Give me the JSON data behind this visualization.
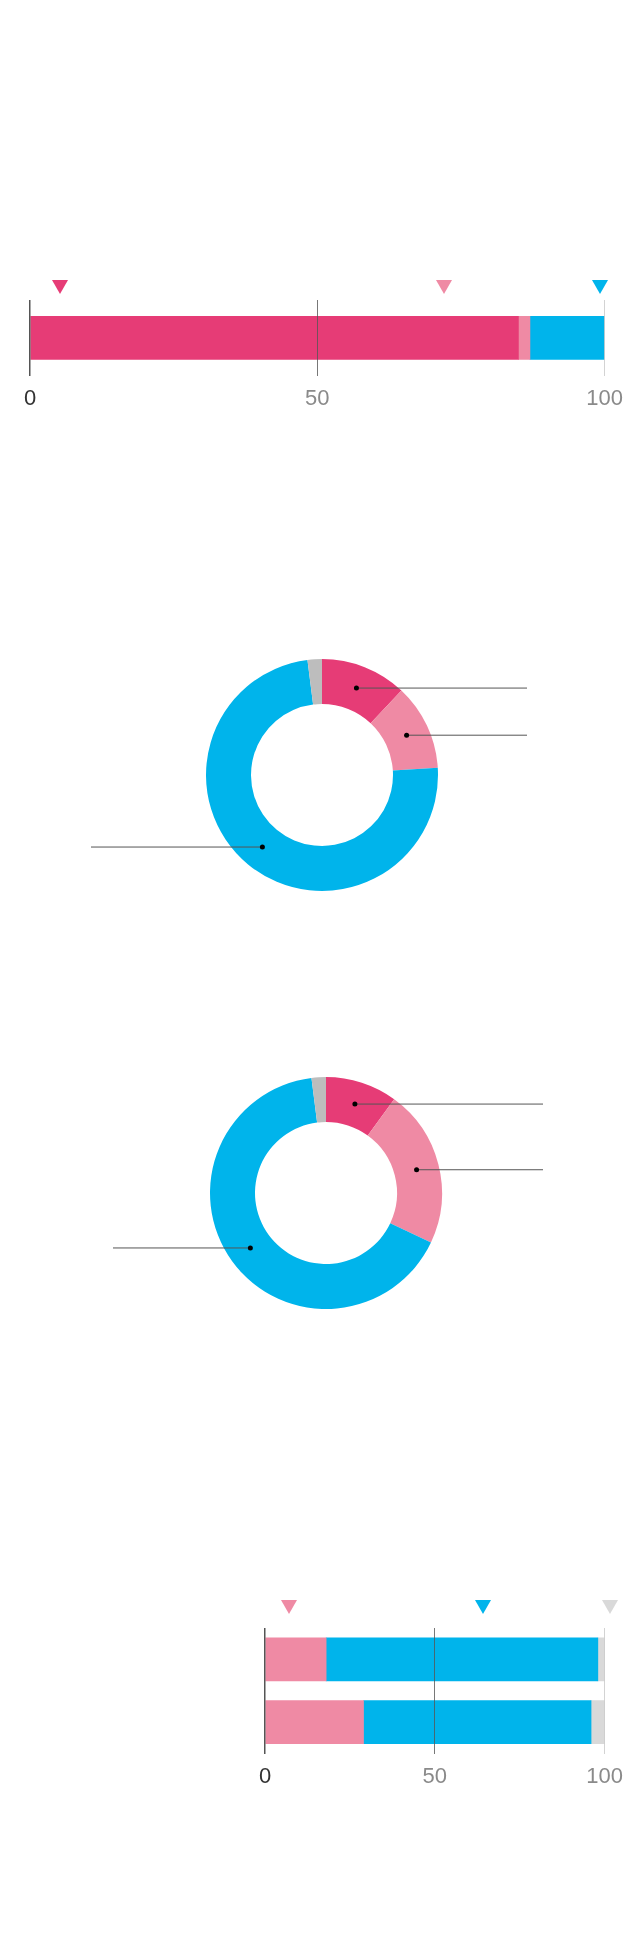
{
  "chart_data": [
    {
      "type": "bar",
      "orientation": "horizontal",
      "stacked": true,
      "categories": [
        null
      ],
      "series": [
        {
          "color": "#e63c76",
          "values": [
            85
          ]
        },
        {
          "color": "#ef8aa4",
          "values": [
            2
          ]
        },
        {
          "color": "#00b4eb",
          "values": [
            13
          ]
        }
      ],
      "xlim": [
        0,
        100
      ],
      "xticks": [
        0,
        50,
        100
      ],
      "grid": "x",
      "legend": false
    },
    {
      "type": "donut",
      "categories": [
        null,
        null,
        null,
        null
      ],
      "values": [
        12,
        12,
        74,
        2
      ],
      "colors": [
        "#e63c76",
        "#ef8aa4",
        "#00b4eb",
        "#bdbdbd"
      ],
      "legend": false
    },
    {
      "type": "donut",
      "categories": [
        null,
        null,
        null,
        null
      ],
      "values": [
        10,
        22,
        66,
        2
      ],
      "colors": [
        "#e63c76",
        "#ef8aa4",
        "#00b4eb",
        "#bdbdbd"
      ],
      "legend": false
    },
    {
      "type": "bar",
      "orientation": "horizontal",
      "stacked": true,
      "categories": [
        null,
        null
      ],
      "series": [
        {
          "color": "#ef8aa4",
          "values": [
            18,
            29
          ]
        },
        {
          "color": "#00b4eb",
          "values": [
            80,
            67
          ]
        },
        {
          "color": "#d9d9d9",
          "values": [
            2,
            4
          ]
        }
      ],
      "xlim": [
        0,
        100
      ],
      "xticks": [
        0,
        50,
        100
      ],
      "grid": "x",
      "legend": false
    }
  ]
}
